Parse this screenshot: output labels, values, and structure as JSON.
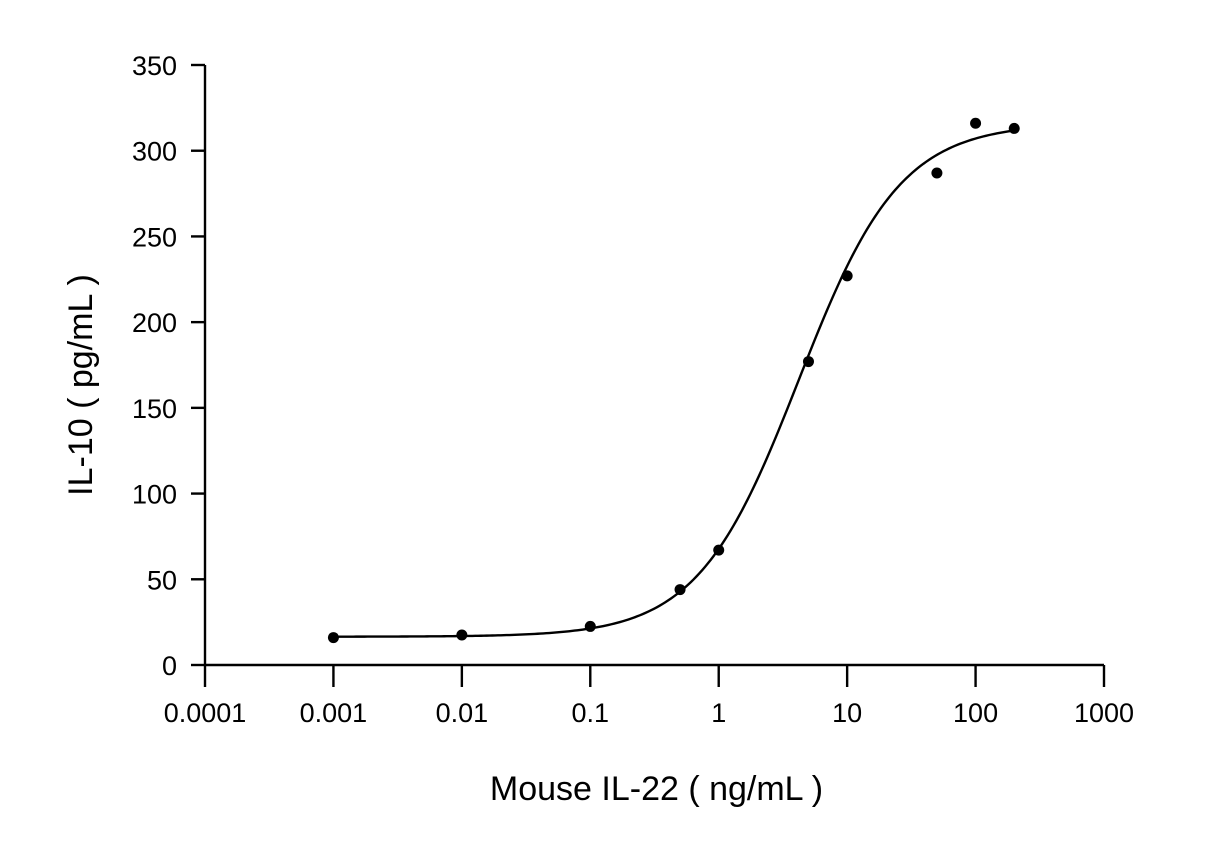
{
  "chart_data": {
    "type": "scatter",
    "title": "",
    "xlabel": "Mouse IL-22 ( ng/mL )",
    "ylabel": "IL-10 ( pg/mL )",
    "xscale": "log",
    "xlim": [
      0.0001,
      1000
    ],
    "ylim": [
      0,
      350
    ],
    "xticks": [
      0.0001,
      0.001,
      0.01,
      0.1,
      1,
      10,
      100,
      1000
    ],
    "xtick_labels": [
      "0.0001",
      "0.001",
      "0.01",
      "0.1",
      "1",
      "10",
      "100",
      "1000"
    ],
    "yticks": [
      0,
      50,
      100,
      150,
      200,
      250,
      300,
      350
    ],
    "ytick_labels": [
      "0",
      "50",
      "100",
      "150",
      "200",
      "250",
      "300",
      "350"
    ],
    "grid": false,
    "legend": "none",
    "series": [
      {
        "x": [
          0.001,
          0.01,
          0.1,
          0.5,
          1,
          5,
          10,
          50,
          100,
          200
        ],
        "y": [
          16,
          17.5,
          22.5,
          44,
          67,
          177,
          227,
          287,
          316,
          313
        ]
      }
    ],
    "fit_curve": {
      "model": "4PL",
      "bottom": 16.5,
      "top": 316,
      "ec50": 4.2,
      "hill": 1.1
    }
  }
}
